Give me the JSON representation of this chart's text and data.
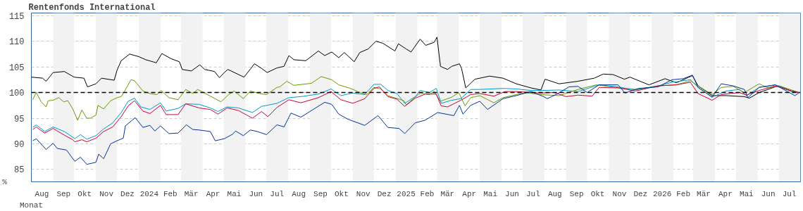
{
  "chart_data": {
    "type": "line",
    "title": "Rentenfonds International",
    "xlabel": "Monat",
    "ylabel": "%",
    "xlim": [
      "2023-08-01",
      "2026-08-01"
    ],
    "ylim": [
      82.6,
      115.5
    ],
    "yticks": [
      85,
      90,
      95,
      100,
      105,
      110,
      115
    ],
    "xticks": [
      {
        "value": "2023-08-16",
        "label": "Aug"
      },
      {
        "value": "2023-09-16",
        "label": "Sep"
      },
      {
        "value": "2023-10-16",
        "label": "Okt"
      },
      {
        "value": "2023-11-16",
        "label": "Nov"
      },
      {
        "value": "2023-12-16",
        "label": "Dez"
      },
      {
        "value": "2024-01-16",
        "label": "2024"
      },
      {
        "value": "2024-02-15",
        "label": "Feb"
      },
      {
        "value": "2024-03-16",
        "label": "Mär"
      },
      {
        "value": "2024-04-16",
        "label": "Apr"
      },
      {
        "value": "2024-05-16",
        "label": "Mai"
      },
      {
        "value": "2024-06-16",
        "label": "Jun"
      },
      {
        "value": "2024-07-16",
        "label": "Jul"
      },
      {
        "value": "2024-08-16",
        "label": "Aug"
      },
      {
        "value": "2024-09-16",
        "label": "Sep"
      },
      {
        "value": "2024-10-16",
        "label": "Okt"
      },
      {
        "value": "2024-11-16",
        "label": "Nov"
      },
      {
        "value": "2024-12-16",
        "label": "Dez"
      },
      {
        "value": "2025-01-16",
        "label": "2025"
      },
      {
        "value": "2025-02-15",
        "label": "Feb"
      },
      {
        "value": "2025-03-16",
        "label": "Mär"
      },
      {
        "value": "2025-04-16",
        "label": "Apr"
      },
      {
        "value": "2025-05-16",
        "label": "Mai"
      },
      {
        "value": "2025-06-16",
        "label": "Jun"
      },
      {
        "value": "2025-07-16",
        "label": "Jul"
      },
      {
        "value": "2025-08-16",
        "label": "Aug"
      },
      {
        "value": "2025-09-16",
        "label": "Sep"
      },
      {
        "value": "2025-10-16",
        "label": "Okt"
      },
      {
        "value": "2025-11-16",
        "label": "Nov"
      },
      {
        "value": "2025-12-16",
        "label": "Dez"
      },
      {
        "value": "2026-01-16",
        "label": "2026"
      },
      {
        "value": "2026-02-15",
        "label": "Feb"
      },
      {
        "value": "2026-03-16",
        "label": "Mär"
      },
      {
        "value": "2026-04-16",
        "label": "Apr"
      },
      {
        "value": "2026-05-16",
        "label": "Mai"
      },
      {
        "value": "2026-06-16",
        "label": "Jun"
      },
      {
        "value": "2026-07-16",
        "label": "Jul"
      }
    ],
    "grid": "y",
    "marker": "none",
    "line_style": "solid",
    "ref_lines": [
      {
        "axis": "y",
        "value": 100,
        "label": null,
        "color": "#000000",
        "line_style": "dashed"
      }
    ],
    "bands": [
      {
        "axis": "x",
        "from": "2023-09-01",
        "to": "2023-10-01",
        "label": null,
        "color": "#f2f2f2"
      },
      {
        "axis": "x",
        "from": "2023-11-01",
        "to": "2023-12-01",
        "label": null,
        "color": "#f2f2f2"
      },
      {
        "axis": "x",
        "from": "2024-01-01",
        "to": "2024-02-01",
        "label": null,
        "color": "#f2f2f2"
      },
      {
        "axis": "x",
        "from": "2024-03-01",
        "to": "2024-04-01",
        "label": null,
        "color": "#f2f2f2"
      },
      {
        "axis": "x",
        "from": "2024-05-01",
        "to": "2024-06-01",
        "label": null,
        "color": "#f2f2f2"
      },
      {
        "axis": "x",
        "from": "2024-07-01",
        "to": "2024-08-01",
        "label": null,
        "color": "#f2f2f2"
      },
      {
        "axis": "x",
        "from": "2024-09-01",
        "to": "2024-10-01",
        "label": null,
        "color": "#f2f2f2"
      },
      {
        "axis": "x",
        "from": "2024-11-01",
        "to": "2024-12-01",
        "label": null,
        "color": "#f2f2f2"
      },
      {
        "axis": "x",
        "from": "2025-01-01",
        "to": "2025-02-01",
        "label": null,
        "color": "#f2f2f2"
      },
      {
        "axis": "x",
        "from": "2025-03-01",
        "to": "2025-04-01",
        "label": null,
        "color": "#f2f2f2"
      },
      {
        "axis": "x",
        "from": "2025-05-01",
        "to": "2025-06-01",
        "label": null,
        "color": "#f2f2f2"
      },
      {
        "axis": "x",
        "from": "2025-07-01",
        "to": "2025-08-01",
        "label": null,
        "color": "#f2f2f2"
      },
      {
        "axis": "x",
        "from": "2025-09-01",
        "to": "2025-10-01",
        "label": null,
        "color": "#f2f2f2"
      },
      {
        "axis": "x",
        "from": "2025-11-01",
        "to": "2025-12-01",
        "label": null,
        "color": "#f2f2f2"
      },
      {
        "axis": "x",
        "from": "2026-01-01",
        "to": "2026-02-01",
        "label": null,
        "color": "#f2f2f2"
      },
      {
        "axis": "x",
        "from": "2026-03-01",
        "to": "2026-04-01",
        "label": null,
        "color": "#f2f2f2"
      },
      {
        "axis": "x",
        "from": "2026-05-01",
        "to": "2026-06-01",
        "label": null,
        "color": "#f2f2f2"
      },
      {
        "axis": "x",
        "from": "2026-07-01",
        "to": "2026-08-01",
        "label": null,
        "color": "#f2f2f2"
      }
    ],
    "series": [
      {
        "color": "#000000",
        "x": [
          "2023-08-01",
          "2023-08-17",
          "2023-08-22",
          "2023-09-01",
          "2023-09-17",
          "2023-10-01",
          "2023-10-15",
          "2023-10-20",
          "2023-11-01",
          "2023-11-09",
          "2023-11-27",
          "2023-12-01",
          "2023-12-07",
          "2023-12-19",
          "2024-01-01",
          "2024-01-11",
          "2024-01-26",
          "2024-02-03",
          "2024-02-16",
          "2024-02-28",
          "2024-03-03",
          "2024-03-16",
          "2024-03-28",
          "2024-04-04",
          "2024-04-18",
          "2024-04-25",
          "2024-05-02",
          "2024-05-07",
          "2024-05-30",
          "2024-06-14",
          "2024-06-24",
          "2024-07-02",
          "2024-07-16",
          "2024-07-26",
          "2024-08-02",
          "2024-08-09",
          "2024-08-26",
          "2024-09-13",
          "2024-09-22",
          "2024-10-02",
          "2024-10-12",
          "2024-10-20",
          "2024-11-03",
          "2024-11-11",
          "2024-11-23",
          "2024-12-04",
          "2024-12-14",
          "2024-12-31",
          "2025-01-05",
          "2025-01-16",
          "2025-01-23",
          "2025-02-05",
          "2025-02-13",
          "2025-02-25",
          "2025-03-01",
          "2025-03-06",
          "2025-03-16",
          "2025-03-22",
          "2025-04-02",
          "2025-04-05",
          "2025-04-11",
          "2025-04-24",
          "2025-05-15",
          "2025-06-03",
          "2025-06-22",
          "2025-07-13",
          "2025-07-27",
          "2025-08-02",
          "2025-08-22",
          "2025-09-18",
          "2025-10-11",
          "2025-10-24",
          "2025-11-07",
          "2025-11-23",
          "2025-12-01",
          "2025-12-28",
          "2026-01-20",
          "2026-02-05",
          "2026-02-28",
          "2026-03-08",
          "2026-03-28",
          "2026-04-17",
          "2026-05-13",
          "2026-05-20",
          "2026-06-03",
          "2026-06-30",
          "2026-07-19",
          "2026-07-30"
        ],
        "values": [
          103.0,
          102.8,
          102.2,
          103.9,
          104.1,
          103.0,
          102.8,
          101.1,
          101.7,
          102.8,
          102.4,
          104.3,
          106.2,
          107.5,
          107.0,
          106.4,
          105.8,
          107.6,
          106.6,
          106.0,
          104.5,
          104.2,
          105.4,
          104.5,
          104.1,
          102.9,
          103.9,
          104.5,
          103.0,
          105.6,
          104.7,
          103.9,
          104.8,
          105.1,
          107.2,
          106.4,
          106.2,
          108.1,
          107.2,
          107.9,
          106.8,
          107.8,
          106.0,
          107.8,
          108.5,
          110.0,
          109.6,
          108.1,
          109.5,
          108.5,
          107.9,
          110.4,
          109.2,
          109.8,
          110.8,
          105.1,
          104.5,
          105.1,
          105.6,
          104.7,
          100.9,
          102.6,
          103.2,
          102.8,
          101.7,
          100.9,
          100.5,
          102.6,
          101.7,
          102.2,
          102.8,
          103.6,
          103.5,
          102.6,
          103.0,
          101.5,
          102.7,
          101.9,
          103.3,
          101.3,
          99.4,
          99.4,
          99.2,
          98.9,
          100.0,
          101.3,
          100.3,
          100.0
        ]
      },
      {
        "color": "#669900",
        "x": [
          "2023-08-03",
          "2023-08-08",
          "2023-08-15",
          "2023-08-22",
          "2023-08-25",
          "2023-09-01",
          "2023-09-09",
          "2023-09-16",
          "2023-09-22",
          "2023-09-29",
          "2023-10-06",
          "2023-10-12",
          "2023-10-19",
          "2023-10-24",
          "2023-11-01",
          "2023-11-04",
          "2023-11-12",
          "2023-11-22",
          "2023-12-01",
          "2023-12-07",
          "2023-12-12",
          "2023-12-21",
          "2023-12-26",
          "2024-01-07",
          "2024-01-17",
          "2024-01-27",
          "2024-02-02",
          "2024-02-13",
          "2024-02-26",
          "2024-03-08",
          "2024-03-18",
          "2024-03-25",
          "2024-04-12",
          "2024-04-27",
          "2024-05-02",
          "2024-05-08",
          "2024-05-16",
          "2024-05-29",
          "2024-06-08",
          "2024-06-21",
          "2024-07-01",
          "2024-07-16",
          "2024-07-20",
          "2024-07-30",
          "2024-08-09",
          "2024-09-03",
          "2024-09-17",
          "2024-10-02",
          "2024-10-12",
          "2024-10-29",
          "2024-11-11",
          "2024-11-21",
          "2024-12-01",
          "2024-12-11",
          "2024-12-21",
          "2025-01-13",
          "2025-01-16",
          "2025-02-05",
          "2025-02-18",
          "2025-02-25",
          "2025-03-06",
          "2025-03-22",
          "2025-04-01",
          "2025-04-10",
          "2025-04-18",
          "2025-05-01",
          "2025-05-21",
          "2025-06-03",
          "2025-06-22",
          "2025-07-06",
          "2025-07-26",
          "2025-08-22",
          "2025-09-18",
          "2025-10-14",
          "2025-11-10",
          "2025-12-09",
          "2026-01-10",
          "2026-02-05",
          "2026-02-25",
          "2026-03-08",
          "2026-03-28",
          "2026-04-10",
          "2026-04-27",
          "2026-05-13",
          "2026-06-03",
          "2026-06-16",
          "2026-07-02",
          "2026-07-30"
        ],
        "values": [
          98.6,
          100.0,
          98.2,
          97.2,
          98.4,
          98.5,
          99.0,
          98.2,
          98.4,
          96.8,
          94.6,
          96.6,
          95.0,
          95.0,
          95.6,
          97.5,
          96.8,
          98.4,
          99.0,
          99.2,
          100.3,
          102.5,
          102.3,
          100.3,
          99.8,
          99.6,
          100.4,
          99.0,
          98.6,
          100.6,
          99.8,
          100.6,
          99.3,
          98.2,
          98.8,
          99.6,
          100.3,
          98.8,
          100.3,
          99.8,
          99.6,
          101.0,
          101.1,
          102.2,
          101.4,
          101.8,
          103.1,
          102.5,
          101.5,
          100.8,
          100.0,
          99.6,
          101.0,
          100.7,
          99.4,
          98.4,
          97.6,
          99.9,
          99.6,
          100.2,
          98.3,
          99.1,
          100.0,
          97.4,
          99.0,
          99.4,
          98.0,
          99.0,
          99.6,
          100.0,
          99.6,
          99.4,
          100.6,
          101.5,
          101.0,
          100.6,
          101.3,
          101.5,
          102.3,
          101.3,
          99.6,
          101.0,
          101.2,
          100.0,
          101.7,
          100.9,
          101.3,
          100.0
        ]
      },
      {
        "color": "#0099cc",
        "x": [
          "2023-08-03",
          "2023-08-08",
          "2023-08-20",
          "2023-09-01",
          "2023-09-17",
          "2023-10-02",
          "2023-10-10",
          "2023-10-19",
          "2023-11-01",
          "2023-11-12",
          "2023-11-25",
          "2023-12-07",
          "2023-12-17",
          "2023-12-26",
          "2024-01-04",
          "2024-01-17",
          "2024-02-01",
          "2024-02-09",
          "2024-02-26",
          "2024-03-08",
          "2024-03-27",
          "2024-04-12",
          "2024-04-23",
          "2024-05-06",
          "2024-05-22",
          "2024-06-11",
          "2024-06-24",
          "2024-07-16",
          "2024-08-02",
          "2024-08-19",
          "2024-09-13",
          "2024-10-01",
          "2024-10-15",
          "2024-11-01",
          "2024-11-18",
          "2024-12-01",
          "2024-12-11",
          "2024-12-21",
          "2025-01-03",
          "2025-01-14",
          "2025-01-29",
          "2025-02-05",
          "2025-02-18",
          "2025-02-28",
          "2025-03-07",
          "2025-03-22",
          "2025-04-04",
          "2025-04-18",
          "2025-05-01",
          "2025-06-03",
          "2025-06-22",
          "2025-07-13",
          "2025-07-27",
          "2025-08-22",
          "2025-09-18",
          "2025-10-18",
          "2025-11-14",
          "2025-12-09",
          "2026-01-10",
          "2026-01-30",
          "2026-02-25",
          "2026-03-08",
          "2026-03-28",
          "2026-04-17",
          "2026-05-06",
          "2026-05-16",
          "2026-06-03",
          "2026-06-26",
          "2026-07-19",
          "2026-07-30"
        ],
        "values": [
          93.2,
          93.7,
          92.4,
          93.3,
          92.4,
          91.0,
          91.8,
          90.9,
          91.6,
          92.9,
          94.1,
          96.1,
          98.3,
          98.9,
          97.2,
          96.7,
          98.0,
          96.4,
          96.9,
          97.8,
          97.7,
          97.0,
          96.3,
          97.2,
          97.0,
          96.1,
          97.3,
          97.9,
          99.0,
          99.2,
          99.7,
          100.7,
          99.4,
          99.9,
          99.6,
          101.6,
          101.6,
          100.4,
          99.8,
          97.9,
          99.2,
          100.4,
          100.0,
          100.8,
          97.9,
          98.5,
          98.8,
          100.6,
          100.6,
          100.8,
          100.7,
          100.4,
          100.4,
          100.5,
          100.2,
          101.5,
          101.1,
          100.5,
          101.3,
          102.0,
          102.5,
          101.0,
          99.1,
          100.3,
          100.6,
          99.4,
          101.0,
          101.5,
          100.2,
          100.0
        ]
      },
      {
        "color": "#cc0033",
        "x": [
          "2023-08-03",
          "2023-08-08",
          "2023-08-20",
          "2023-09-01",
          "2023-09-17",
          "2023-09-29",
          "2023-10-02",
          "2023-10-12",
          "2023-10-19",
          "2023-11-01",
          "2023-11-12",
          "2023-11-25",
          "2023-12-07",
          "2023-12-17",
          "2023-12-26",
          "2024-01-07",
          "2024-01-17",
          "2024-02-01",
          "2024-02-09",
          "2024-02-26",
          "2024-03-08",
          "2024-03-27",
          "2024-04-12",
          "2024-04-23",
          "2024-05-06",
          "2024-05-22",
          "2024-06-11",
          "2024-06-24",
          "2024-07-03",
          "2024-07-16",
          "2024-08-02",
          "2024-08-19",
          "2024-09-13",
          "2024-10-01",
          "2024-10-15",
          "2024-11-01",
          "2024-11-18",
          "2024-12-01",
          "2024-12-09",
          "2024-12-21",
          "2025-01-03",
          "2025-01-14",
          "2025-01-29",
          "2025-02-12",
          "2025-02-28",
          "2025-03-07",
          "2025-03-16",
          "2025-04-04",
          "2025-04-18",
          "2025-05-01",
          "2025-05-21",
          "2025-06-06",
          "2025-06-22",
          "2025-07-13",
          "2025-07-27",
          "2025-08-15",
          "2025-09-01",
          "2025-09-18",
          "2025-10-08",
          "2025-10-18",
          "2025-11-14",
          "2025-12-09",
          "2026-01-10",
          "2026-02-05",
          "2026-02-25",
          "2026-03-08",
          "2026-03-28",
          "2026-04-10",
          "2026-05-06",
          "2026-05-16",
          "2026-06-03",
          "2026-06-26",
          "2026-07-19",
          "2026-07-30"
        ],
        "values": [
          92.8,
          93.3,
          92.1,
          93.0,
          91.7,
          90.8,
          90.4,
          90.8,
          90.4,
          91.1,
          92.4,
          93.3,
          95.3,
          97.4,
          98.4,
          96.4,
          95.9,
          97.5,
          95.7,
          95.7,
          97.8,
          97.0,
          96.7,
          95.8,
          97.0,
          96.5,
          95.0,
          96.3,
          95.3,
          97.1,
          98.6,
          98.0,
          99.0,
          100.2,
          98.6,
          97.9,
          98.8,
          100.8,
          101.1,
          99.2,
          98.7,
          97.3,
          98.9,
          99.7,
          99.7,
          97.4,
          97.2,
          98.5,
          99.6,
          99.8,
          99.3,
          100.2,
          100.2,
          100.0,
          99.9,
          100.0,
          99.2,
          99.5,
          99.3,
          101.0,
          100.9,
          100.3,
          101.3,
          101.5,
          102.0,
          99.8,
          98.5,
          99.6,
          100.0,
          99.5,
          100.4,
          101.3,
          100.3,
          100.0
        ]
      },
      {
        "color": "#003399",
        "x": [
          "2023-08-03",
          "2023-08-08",
          "2023-08-22",
          "2023-09-01",
          "2023-09-07",
          "2023-09-20",
          "2023-10-02",
          "2023-10-10",
          "2023-10-19",
          "2023-11-01",
          "2023-11-05",
          "2023-11-12",
          "2023-11-22",
          "2023-12-01",
          "2023-12-10",
          "2023-12-13",
          "2023-12-27",
          "2024-01-07",
          "2024-01-17",
          "2024-01-24",
          "2024-02-01",
          "2024-02-13",
          "2024-02-26",
          "2024-03-09",
          "2024-03-18",
          "2024-03-27",
          "2024-04-12",
          "2024-04-19",
          "2024-05-02",
          "2024-05-14",
          "2024-05-18",
          "2024-05-29",
          "2024-06-08",
          "2024-06-18",
          "2024-07-01",
          "2024-07-16",
          "2024-07-26",
          "2024-08-05",
          "2024-08-19",
          "2024-09-22",
          "2024-10-02",
          "2024-10-12",
          "2024-10-25",
          "2024-11-18",
          "2024-12-07",
          "2024-12-21",
          "2025-01-06",
          "2025-01-14",
          "2025-01-29",
          "2025-02-12",
          "2025-03-02",
          "2025-03-25",
          "2025-04-02",
          "2025-04-07",
          "2025-04-18",
          "2025-05-01",
          "2025-05-12",
          "2025-06-03",
          "2025-06-22",
          "2025-07-13",
          "2025-07-31",
          "2025-08-05",
          "2025-08-19",
          "2025-09-05",
          "2025-09-18",
          "2025-10-01",
          "2025-10-18",
          "2025-11-14",
          "2025-11-24",
          "2025-12-13",
          "2026-01-10",
          "2026-01-30",
          "2026-02-15",
          "2026-02-28",
          "2026-03-08",
          "2026-03-28",
          "2026-04-10",
          "2026-04-27",
          "2026-05-13",
          "2026-05-18",
          "2026-06-03",
          "2026-06-26",
          "2026-07-24",
          "2026-07-30"
        ],
        "values": [
          90.6,
          91.0,
          88.9,
          90.1,
          89.1,
          88.8,
          86.6,
          87.4,
          86.0,
          86.4,
          88.0,
          87.1,
          90.0,
          90.6,
          91.1,
          93.5,
          95.1,
          93.2,
          93.6,
          92.5,
          93.5,
          92.0,
          92.1,
          93.7,
          92.8,
          92.7,
          92.4,
          90.6,
          91.0,
          91.9,
          92.5,
          91.6,
          92.7,
          92.4,
          91.8,
          93.7,
          93.3,
          96.0,
          95.2,
          98.1,
          97.7,
          95.8,
          94.8,
          93.6,
          95.5,
          93.2,
          93.0,
          92.0,
          94.1,
          94.6,
          96.1,
          95.5,
          97.5,
          95.8,
          97.5,
          98.3,
          96.7,
          98.8,
          99.4,
          100.2,
          99.2,
          98.8,
          99.7,
          101.1,
          101.2,
          100.0,
          101.5,
          101.5,
          99.9,
          100.8,
          101.1,
          102.5,
          102.7,
          103.4,
          101.0,
          99.1,
          101.7,
          101.3,
          100.6,
          99.0,
          101.0,
          101.5,
          99.4,
          100.0
        ]
      }
    ]
  }
}
